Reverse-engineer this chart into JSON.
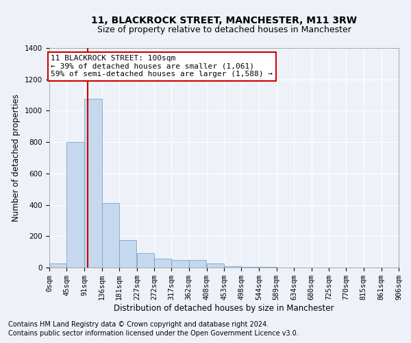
{
  "title": "11, BLACKROCK STREET, MANCHESTER, M11 3RW",
  "subtitle": "Size of property relative to detached houses in Manchester",
  "xlabel": "Distribution of detached houses by size in Manchester",
  "ylabel": "Number of detached properties",
  "footnote1": "Contains HM Land Registry data © Crown copyright and database right 2024.",
  "footnote2": "Contains public sector information licensed under the Open Government Licence v3.0.",
  "annotation_line1": "11 BLACKROCK STREET: 100sqm",
  "annotation_line2": "← 39% of detached houses are smaller (1,061)",
  "annotation_line3": "59% of semi-detached houses are larger (1,588) →",
  "bin_edges": [
    0,
    45,
    91,
    136,
    181,
    227,
    272,
    317,
    362,
    408,
    453,
    498,
    544,
    589,
    634,
    680,
    725,
    770,
    815,
    861,
    906
  ],
  "bar_heights": [
    25,
    800,
    1075,
    410,
    175,
    90,
    55,
    50,
    50,
    25,
    8,
    5,
    3,
    2,
    1,
    1,
    0,
    0,
    0,
    0
  ],
  "bar_color": "#c5d8ee",
  "bar_edge_color": "#6699cc",
  "red_line_x": 100,
  "ylim": [
    0,
    1400
  ],
  "yticks": [
    0,
    200,
    400,
    600,
    800,
    1000,
    1200,
    1400
  ],
  "background_color": "#eef2f8",
  "grid_color": "#ffffff",
  "annotation_box_color": "#ffffff",
  "annotation_box_edge": "#cc0000",
  "red_line_color": "#cc0000",
  "title_fontsize": 10,
  "subtitle_fontsize": 9,
  "axis_label_fontsize": 8.5,
  "tick_fontsize": 7.5,
  "annotation_fontsize": 8,
  "footnote_fontsize": 7
}
